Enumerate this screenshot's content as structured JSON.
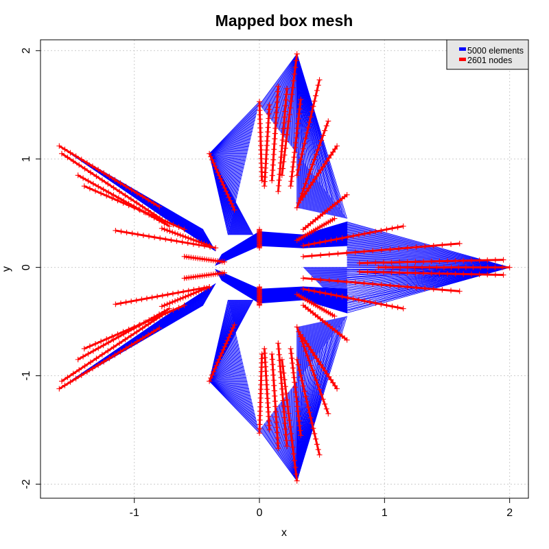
{
  "chart_data": {
    "type": "scatter",
    "title": "Mapped box mesh",
    "xlabel": "x",
    "ylabel": "y",
    "xlim": [
      -1.75,
      2.15
    ],
    "ylim": [
      -2.13,
      2.1
    ],
    "xticks": [
      -1,
      0,
      1,
      2
    ],
    "yticks": [
      -2,
      -1,
      0,
      1,
      2
    ],
    "grid": true,
    "legend_position": "top-right",
    "series": [
      {
        "name": "5000 elements",
        "color": "#0000ff",
        "kind": "mesh-elements"
      },
      {
        "name": "2601 nodes",
        "color": "#ff0000",
        "kind": "nodes",
        "marker": "+"
      }
    ],
    "node_segments": [
      [
        [
          -1.6,
          1.12
        ],
        [
          -0.8,
          0.56
        ]
      ],
      [
        [
          -1.58,
          1.05
        ],
        [
          -0.75,
          0.42
        ]
      ],
      [
        [
          -1.45,
          0.85
        ],
        [
          -0.72,
          0.38
        ]
      ],
      [
        [
          -1.4,
          0.75
        ],
        [
          -0.6,
          0.35
        ]
      ],
      [
        [
          -1.15,
          0.34
        ],
        [
          -0.35,
          0.18
        ]
      ],
      [
        [
          -0.78,
          0.36
        ],
        [
          -0.4,
          0.2
        ]
      ],
      [
        [
          -0.6,
          0.1
        ],
        [
          -0.28,
          0.05
        ]
      ],
      [
        [
          -0.6,
          -0.1
        ],
        [
          -0.28,
          -0.05
        ]
      ],
      [
        [
          -1.15,
          -0.34
        ],
        [
          -0.4,
          -0.18
        ]
      ],
      [
        [
          -0.78,
          -0.36
        ],
        [
          -0.4,
          -0.18
        ]
      ],
      [
        [
          -1.6,
          -1.12
        ],
        [
          -0.8,
          -0.56
        ]
      ],
      [
        [
          -1.58,
          -1.05
        ],
        [
          -0.75,
          -0.42
        ]
      ],
      [
        [
          -1.45,
          -0.85
        ],
        [
          -0.72,
          -0.38
        ]
      ],
      [
        [
          -1.4,
          -0.75
        ],
        [
          -0.6,
          -0.35
        ]
      ],
      [
        [
          -0.4,
          1.05
        ],
        [
          -0.2,
          0.53
        ]
      ],
      [
        [
          -0.4,
          -1.05
        ],
        [
          -0.2,
          -0.53
        ]
      ],
      [
        [
          0.0,
          1.53
        ],
        [
          0.02,
          0.8
        ]
      ],
      [
        [
          0.08,
          1.5
        ],
        [
          0.04,
          0.75
        ]
      ],
      [
        [
          0.15,
          1.67
        ],
        [
          0.1,
          0.8
        ]
      ],
      [
        [
          0.22,
          1.65
        ],
        [
          0.15,
          0.7
        ]
      ],
      [
        [
          0.3,
          1.97
        ],
        [
          0.18,
          0.85
        ]
      ],
      [
        [
          0.33,
          1.55
        ],
        [
          0.25,
          0.75
        ]
      ],
      [
        [
          0.48,
          1.73
        ],
        [
          0.3,
          0.85
        ]
      ],
      [
        [
          0.55,
          1.35
        ],
        [
          0.3,
          0.55
        ]
      ],
      [
        [
          0.62,
          1.12
        ],
        [
          0.33,
          0.62
        ]
      ],
      [
        [
          0.7,
          0.67
        ],
        [
          0.35,
          0.35
        ]
      ],
      [
        [
          0.6,
          0.45
        ],
        [
          0.3,
          0.25
        ]
      ],
      [
        [
          0.0,
          0.35
        ],
        [
          0.0,
          0.18
        ]
      ],
      [
        [
          0.0,
          -0.35
        ],
        [
          0.0,
          -0.18
        ]
      ],
      [
        [
          0.0,
          -1.53
        ],
        [
          0.02,
          -0.8
        ]
      ],
      [
        [
          0.08,
          -1.5
        ],
        [
          0.04,
          -0.75
        ]
      ],
      [
        [
          0.15,
          -1.67
        ],
        [
          0.1,
          -0.8
        ]
      ],
      [
        [
          0.22,
          -1.65
        ],
        [
          0.15,
          -0.7
        ]
      ],
      [
        [
          0.3,
          -1.97
        ],
        [
          0.18,
          -0.85
        ]
      ],
      [
        [
          0.33,
          -1.55
        ],
        [
          0.25,
          -0.75
        ]
      ],
      [
        [
          0.48,
          -1.73
        ],
        [
          0.3,
          -0.85
        ]
      ],
      [
        [
          0.55,
          -1.35
        ],
        [
          0.3,
          -0.55
        ]
      ],
      [
        [
          0.62,
          -1.12
        ],
        [
          0.33,
          -0.62
        ]
      ],
      [
        [
          0.7,
          -0.67
        ],
        [
          0.35,
          -0.35
        ]
      ],
      [
        [
          0.6,
          -0.45
        ],
        [
          0.3,
          -0.25
        ]
      ],
      [
        [
          1.15,
          0.38
        ],
        [
          0.35,
          0.2
        ]
      ],
      [
        [
          1.6,
          0.22
        ],
        [
          0.35,
          0.1
        ]
      ],
      [
        [
          1.95,
          0.07
        ],
        [
          0.8,
          0.04
        ]
      ],
      [
        [
          1.95,
          -0.07
        ],
        [
          0.8,
          -0.04
        ]
      ],
      [
        [
          2.0,
          0.0
        ],
        [
          0.95,
          0.0
        ]
      ],
      [
        [
          1.6,
          -0.22
        ],
        [
          0.35,
          -0.1
        ]
      ],
      [
        [
          1.15,
          -0.38
        ],
        [
          0.35,
          -0.2
        ]
      ]
    ],
    "mesh_fan_groups": [
      {
        "apex": [
          -1.6,
          1.12
        ],
        "base": [
          [
            -0.75,
            0.45
          ],
          [
            -0.35,
            0.15
          ],
          [
            -0.45,
            0.35
          ]
        ]
      },
      {
        "apex": [
          -1.6,
          -1.12
        ],
        "base": [
          [
            -0.75,
            -0.45
          ],
          [
            -0.35,
            -0.15
          ],
          [
            -0.45,
            -0.35
          ]
        ]
      },
      {
        "apex": [
          -0.4,
          1.05
        ],
        "base": [
          [
            0.0,
            1.53
          ],
          [
            -0.25,
            0.3
          ],
          [
            -0.05,
            0.3
          ]
        ]
      },
      {
        "apex": [
          -0.4,
          -1.05
        ],
        "base": [
          [
            0.0,
            -1.53
          ],
          [
            -0.25,
            -0.3
          ],
          [
            -0.05,
            -0.3
          ]
        ]
      },
      {
        "apex": [
          0.3,
          1.97
        ],
        "base": [
          [
            0.0,
            1.5
          ],
          [
            0.7,
            0.45
          ],
          [
            0.3,
            0.55
          ]
        ]
      },
      {
        "apex": [
          0.3,
          -1.97
        ],
        "base": [
          [
            0.0,
            -1.5
          ],
          [
            0.7,
            -0.45
          ],
          [
            0.3,
            -0.55
          ]
        ]
      },
      {
        "apex": [
          2.0,
          0.0
        ],
        "base": [
          [
            0.7,
            0.42
          ],
          [
            0.7,
            -0.42
          ],
          [
            0.35,
            0.0
          ]
        ]
      }
    ]
  }
}
